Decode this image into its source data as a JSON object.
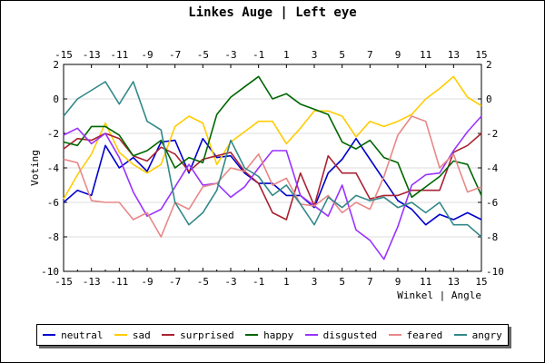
{
  "title": "Linkes Auge | Left eye",
  "chart_data": {
    "type": "line",
    "title": "Linkes Auge | Left eye",
    "xlabel": "Winkel | Angle",
    "ylabel": "Voting",
    "xlim": [
      -15,
      15
    ],
    "ylim": [
      -10,
      2
    ],
    "x_ticks": [
      "-15",
      "-13",
      "-11",
      "-9",
      "-7",
      "-5",
      "-3",
      "-1",
      "1",
      "3",
      "5",
      "7",
      "9",
      "11",
      "13",
      "15"
    ],
    "y_ticks": [
      "2",
      "0",
      "-2",
      "-4",
      "-6",
      "-8",
      "-10"
    ],
    "y_ticks_right": [
      "2",
      "0",
      "-2",
      "-4",
      "-6",
      "-8",
      "-10"
    ],
    "x": [
      -15,
      -14,
      -13,
      -12,
      -11,
      -10,
      -9,
      -8,
      -7,
      -6,
      -5,
      -4,
      -3,
      -2,
      -1,
      0,
      1,
      2,
      3,
      4,
      5,
      6,
      7,
      8,
      9,
      10,
      11,
      12,
      13,
      14,
      15
    ],
    "grid": true,
    "legend_position": "bottom",
    "series": [
      {
        "name": "neutral",
        "color": "#0000cc",
        "values": [
          -6.0,
          -5.3,
          -5.6,
          -2.7,
          -4.0,
          -3.4,
          -4.2,
          -2.5,
          -2.4,
          -4.3,
          -2.3,
          -3.4,
          -3.3,
          -4.3,
          -4.9,
          -4.9,
          -5.6,
          -5.6,
          -6.3,
          -4.3,
          -3.5,
          -2.3,
          -3.5,
          -4.7,
          -5.9,
          -6.4,
          -7.3,
          -6.7,
          -7.0,
          -6.6,
          -7.0
        ]
      },
      {
        "name": "sad",
        "color": "#ffcc00",
        "values": [
          -5.8,
          -4.4,
          -3.2,
          -1.4,
          -3.1,
          -3.8,
          -4.3,
          -3.8,
          -1.6,
          -1.0,
          -1.4,
          -3.8,
          -2.5,
          -1.9,
          -1.3,
          -1.3,
          -2.6,
          -1.7,
          -0.7,
          -0.7,
          -1.0,
          -2.2,
          -1.3,
          -1.6,
          -1.3,
          -0.9,
          0.0,
          0.6,
          1.3,
          0.1,
          -0.4
        ]
      },
      {
        "name": "surprised",
        "color": "#aa2233",
        "values": [
          -2.9,
          -2.3,
          -2.4,
          -2.0,
          -2.3,
          -3.3,
          -3.6,
          -2.8,
          -3.2,
          -4.2,
          -3.5,
          -3.3,
          -3.1,
          -4.2,
          -4.9,
          -6.6,
          -7.0,
          -4.3,
          -6.2,
          -3.3,
          -4.3,
          -4.3,
          -5.8,
          -5.6,
          -5.6,
          -5.3,
          -5.3,
          -5.3,
          -3.1,
          -2.7,
          -2.0
        ]
      },
      {
        "name": "happy",
        "color": "#006600",
        "values": [
          -2.5,
          -2.7,
          -1.6,
          -1.6,
          -2.1,
          -3.3,
          -3.0,
          -2.4,
          -4.0,
          -3.4,
          -3.7,
          -0.9,
          0.1,
          0.7,
          1.3,
          0.0,
          0.3,
          -0.3,
          -0.6,
          -0.9,
          -2.5,
          -2.9,
          -2.4,
          -3.4,
          -3.7,
          -5.7,
          -5.1,
          -4.5,
          -3.6,
          -3.8,
          -5.6
        ]
      },
      {
        "name": "disgusted",
        "color": "#9933ff",
        "values": [
          -2.1,
          -1.7,
          -2.6,
          -2.0,
          -3.4,
          -5.4,
          -6.8,
          -6.4,
          -5.1,
          -3.8,
          -5.0,
          -4.9,
          -5.7,
          -5.1,
          -4.0,
          -3.0,
          -3.0,
          -5.6,
          -6.2,
          -6.8,
          -5.0,
          -7.6,
          -8.2,
          -9.3,
          -7.4,
          -5.0,
          -4.4,
          -4.3,
          -3.0,
          -1.9,
          -1.0
        ]
      },
      {
        "name": "feared",
        "color": "#e88888",
        "values": [
          -3.5,
          -3.7,
          -5.9,
          -6.0,
          -6.0,
          -7.0,
          -6.6,
          -8.0,
          -6.0,
          -6.4,
          -5.1,
          -4.9,
          -4.0,
          -4.2,
          -3.2,
          -5.0,
          -4.6,
          -6.1,
          -6.2,
          -5.6,
          -6.6,
          -6.0,
          -6.4,
          -4.5,
          -2.1,
          -1.0,
          -1.3,
          -4.0,
          -3.2,
          -5.4,
          -5.1
        ]
      },
      {
        "name": "angry",
        "color": "#338888",
        "values": [
          -1.0,
          0.0,
          0.5,
          1.0,
          -0.3,
          1.0,
          -1.3,
          -1.8,
          -6.0,
          -7.3,
          -6.6,
          -5.3,
          -2.4,
          -4.0,
          -4.5,
          -5.6,
          -5.0,
          -6.1,
          -7.3,
          -5.7,
          -6.3,
          -5.6,
          -5.9,
          -5.7,
          -6.3,
          -6.0,
          -6.6,
          -6.0,
          -7.3,
          -7.3,
          -8.0
        ]
      }
    ]
  }
}
